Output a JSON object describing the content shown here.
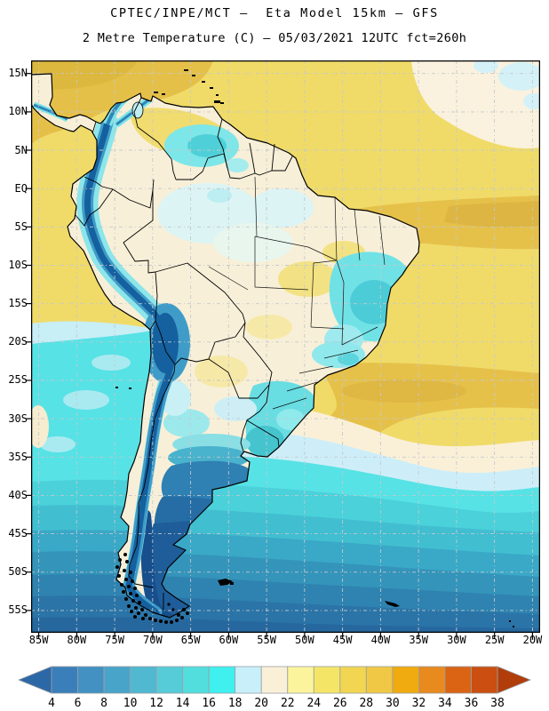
{
  "title": {
    "line1": "CPTEC/INPE/MCT –  Eta Model 15km – GFS",
    "line2": "2 Metre Temperature (C) – 05/03/2021 12UTC fct=260h"
  },
  "map": {
    "lat_labels": [
      "15N",
      "10N",
      "5N",
      "EQ",
      "5S",
      "10S",
      "15S",
      "20S",
      "25S",
      "30S",
      "35S",
      "40S",
      "45S",
      "50S",
      "55S"
    ],
    "lon_labels": [
      "85W",
      "80W",
      "75W",
      "70W",
      "65W",
      "60W",
      "55W",
      "50W",
      "45W",
      "40W",
      "35W",
      "30W",
      "25W",
      "20W"
    ]
  },
  "colorbar": {
    "labels": [
      "4",
      "6",
      "8",
      "10",
      "12",
      "14",
      "16",
      "18",
      "20",
      "22",
      "24",
      "26",
      "28",
      "30",
      "32",
      "34",
      "36",
      "38"
    ],
    "colors": [
      "#3b7fba",
      "#4291c2",
      "#49a4ca",
      "#50b8d1",
      "#56ccd8",
      "#53dede",
      "#3ff0ee",
      "#c9f0fa",
      "#faf0d8",
      "#fbf49c",
      "#f5e567",
      "#f2d652",
      "#f0c845",
      "#f0ab10",
      "#e88a1e",
      "#da6414",
      "#ca4f10"
    ],
    "below_color": "#2d68a6",
    "above_color": "#b03d0a"
  },
  "chart_data": {
    "type": "heatmap",
    "title": "CPTEC/INPE/MCT –  Eta Model 15km – GFS",
    "subtitle": "2 Metre Temperature (C) – 05/03/2021 12UTC fct=260h",
    "institution": "CPTEC/INPE/MCT",
    "model": "Eta Model 15km",
    "boundary_forcing": "GFS",
    "variable": "2 Metre Temperature",
    "units": "C",
    "run": "05/03/2021 12UTC",
    "forecast": "fct=260h",
    "x_ticks": [
      "85W",
      "80W",
      "75W",
      "70W",
      "65W",
      "60W",
      "55W",
      "50W",
      "45W",
      "40W",
      "35W",
      "30W",
      "25W",
      "20W"
    ],
    "y_ticks": [
      "15N",
      "10N",
      "5N",
      "EQ",
      "5S",
      "10S",
      "15S",
      "20S",
      "25S",
      "30S",
      "35S",
      "40S",
      "45S",
      "50S",
      "55S"
    ],
    "legend_position": "bottom",
    "grid": "dashed 5-degree graticule",
    "colorbar_levels": [
      4,
      6,
      8,
      10,
      12,
      14,
      16,
      18,
      20,
      22,
      24,
      26,
      28,
      30,
      32,
      34,
      36,
      38
    ],
    "colorbar_colors": [
      "#3b7fba",
      "#4291c2",
      "#49a4ca",
      "#50b8d1",
      "#56ccd8",
      "#53dede",
      "#3ff0ee",
      "#c9f0fa",
      "#faf0d8",
      "#fbf49c",
      "#f5e567",
      "#f2d652",
      "#f0c845",
      "#f0ab10",
      "#e88a1e",
      "#da6414",
      "#ca4f10"
    ],
    "below_range_color": "#2d68a6",
    "above_range_color": "#b03d0a",
    "described_field": "Cold (<4C) dark blue over Andes chain and Patagonia/Southern Ocean; cream 20-22C over Amazon; cyan 14-18C over NE and S Brazil, Uruguay and SE Pacific; warm 24-28C yellow/gold tropical Atlantic, Caribbean and equatorial oceans"
  }
}
